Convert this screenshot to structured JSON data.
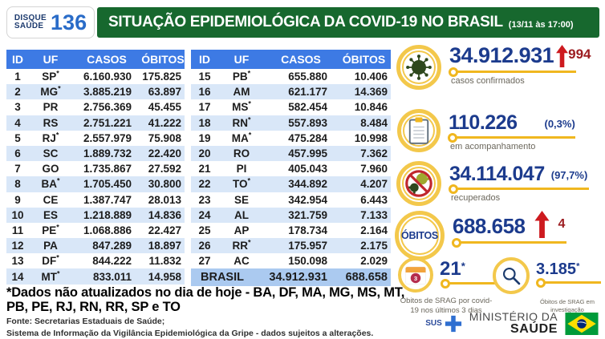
{
  "header": {
    "logo_line1": "DISQUE",
    "logo_line2": "SAÚDE",
    "logo_number": "136",
    "title": "SITUAÇÃO EPIDEMIOLÓGICA DA COVID-19 NO BRASIL",
    "timestamp": "(13/11 às 17:00)"
  },
  "table": {
    "columns": [
      "ID",
      "UF",
      "CASOS",
      "ÓBITOS"
    ],
    "left_rows": [
      {
        "id": "1",
        "uf": "SP",
        "ast": true,
        "casos": "6.160.930",
        "obitos": "175.825"
      },
      {
        "id": "2",
        "uf": "MG",
        "ast": true,
        "casos": "3.885.219",
        "obitos": "63.897"
      },
      {
        "id": "3",
        "uf": "PR",
        "ast": false,
        "casos": "2.756.369",
        "obitos": "45.455"
      },
      {
        "id": "4",
        "uf": "RS",
        "ast": false,
        "casos": "2.751.221",
        "obitos": "41.222"
      },
      {
        "id": "5",
        "uf": "RJ",
        "ast": true,
        "casos": "2.557.979",
        "obitos": "75.908"
      },
      {
        "id": "6",
        "uf": "SC",
        "ast": false,
        "casos": "1.889.732",
        "obitos": "22.420"
      },
      {
        "id": "7",
        "uf": "GO",
        "ast": false,
        "casos": "1.735.867",
        "obitos": "27.592"
      },
      {
        "id": "8",
        "uf": "BA",
        "ast": true,
        "casos": "1.705.450",
        "obitos": "30.800"
      },
      {
        "id": "9",
        "uf": "CE",
        "ast": false,
        "casos": "1.387.747",
        "obitos": "28.013"
      },
      {
        "id": "10",
        "uf": "ES",
        "ast": false,
        "casos": "1.218.889",
        "obitos": "14.836"
      },
      {
        "id": "11",
        "uf": "PE",
        "ast": true,
        "casos": "1.068.886",
        "obitos": "22.427"
      },
      {
        "id": "12",
        "uf": "PA",
        "ast": false,
        "casos": "847.289",
        "obitos": "18.897"
      },
      {
        "id": "13",
        "uf": "DF",
        "ast": true,
        "casos": "844.222",
        "obitos": "11.832"
      },
      {
        "id": "14",
        "uf": "MT",
        "ast": true,
        "casos": "833.011",
        "obitos": "14.958"
      }
    ],
    "right_rows": [
      {
        "id": "15",
        "uf": "PB",
        "ast": true,
        "casos": "655.880",
        "obitos": "10.406"
      },
      {
        "id": "16",
        "uf": "AM",
        "ast": false,
        "casos": "621.177",
        "obitos": "14.369"
      },
      {
        "id": "17",
        "uf": "MS",
        "ast": true,
        "casos": "582.454",
        "obitos": "10.846"
      },
      {
        "id": "18",
        "uf": "RN",
        "ast": true,
        "casos": "557.893",
        "obitos": "8.484"
      },
      {
        "id": "19",
        "uf": "MA",
        "ast": true,
        "casos": "475.284",
        "obitos": "10.998"
      },
      {
        "id": "20",
        "uf": "RO",
        "ast": false,
        "casos": "457.995",
        "obitos": "7.362"
      },
      {
        "id": "21",
        "uf": "PI",
        "ast": false,
        "casos": "405.043",
        "obitos": "7.960"
      },
      {
        "id": "22",
        "uf": "TO",
        "ast": true,
        "casos": "344.892",
        "obitos": "4.207"
      },
      {
        "id": "23",
        "uf": "SE",
        "ast": false,
        "casos": "342.954",
        "obitos": "6.443"
      },
      {
        "id": "24",
        "uf": "AL",
        "ast": false,
        "casos": "321.759",
        "obitos": "7.133"
      },
      {
        "id": "25",
        "uf": "AP",
        "ast": false,
        "casos": "178.734",
        "obitos": "2.164"
      },
      {
        "id": "26",
        "uf": "RR",
        "ast": true,
        "casos": "175.957",
        "obitos": "2.175"
      },
      {
        "id": "27",
        "uf": "AC",
        "ast": false,
        "casos": "150.098",
        "obitos": "2.029"
      }
    ],
    "total": {
      "label": "BRASIL",
      "casos": "34.912.931",
      "obitos": "688.658"
    }
  },
  "stats": {
    "confirmed": {
      "value": "34.912.931",
      "delta": "994",
      "caption": "casos confirmados"
    },
    "monitoring": {
      "value": "110.226",
      "pct": "(0,3%)",
      "caption": "em acompanhamento"
    },
    "recovered": {
      "value": "34.114.047",
      "pct": "(97,7%)",
      "caption": "recuperados"
    },
    "deaths": {
      "badge": "ÓBITOS",
      "value": "688.658",
      "delta": "4"
    },
    "srag_recent": {
      "value": "21",
      "asterisk": "*",
      "day_badge": "3",
      "caption": "Óbitos de SRAG por covid-19 nos últimos 3 dias"
    },
    "srag_investigation": {
      "value": "3.185",
      "asterisk": "*",
      "caption": "Óbitos de SRAG em investigação"
    }
  },
  "footnote": "*Dados não atualizados no dia de hoje - BA, DF, MA, MG, MS, MT, PB, PE, RJ, RN, RR, SP e TO",
  "sources": {
    "line1": "Fonte: Secretarias Estaduais de Saúde;",
    "line2": "Sistema de Informação da Vigilância Epidemiológica da Gripe - dados sujeitos a alterações."
  },
  "ministry": {
    "sus": "SUS",
    "line1": "MINISTÉRIO DA",
    "line2": "SAÚDE"
  },
  "colors": {
    "header_green": "#17682e",
    "table_header_blue": "#3d7ae4",
    "row_alt_blue": "#d9e7f8",
    "total_row_blue": "#abcaf0",
    "number_blue": "#1c3b8d",
    "gold": "#f0b71f",
    "arrow_red": "#cd1a1f",
    "delta_dark_red": "#9c1c20"
  }
}
